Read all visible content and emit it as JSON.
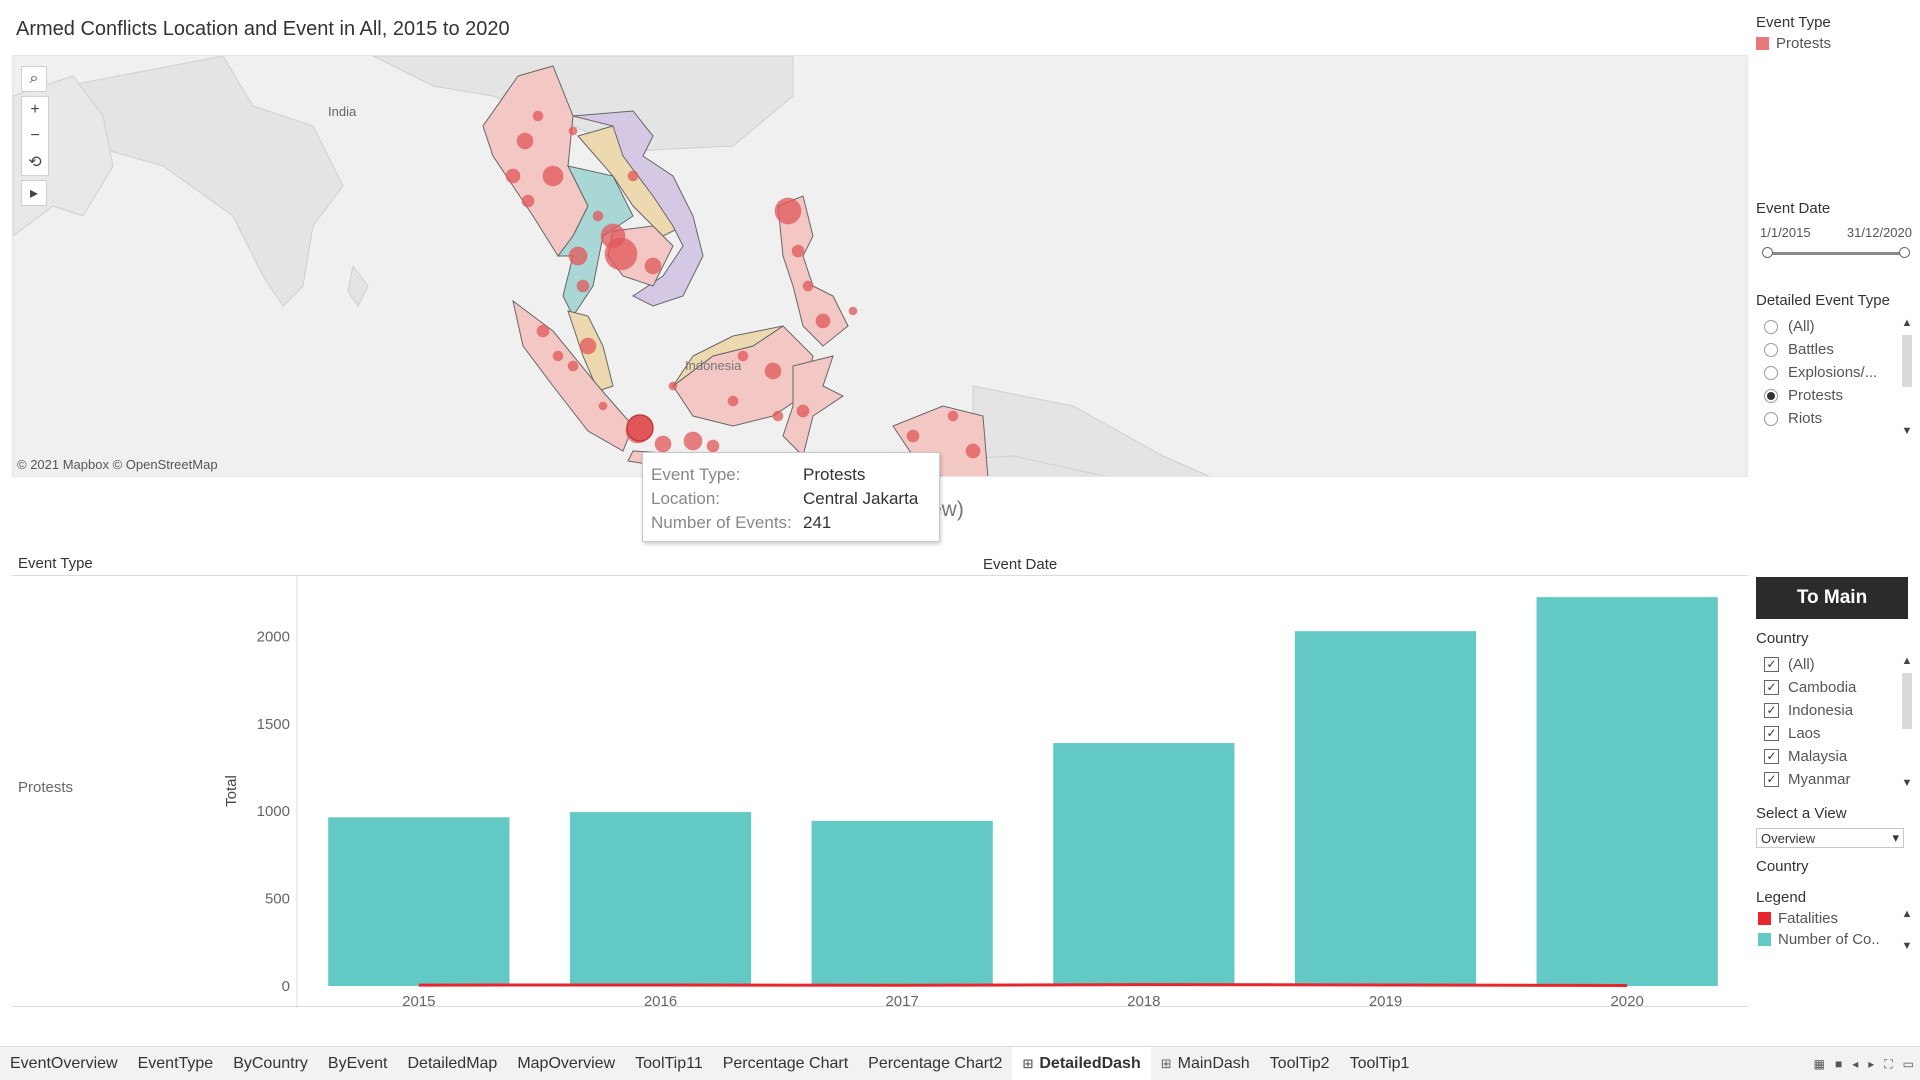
{
  "title": "Armed Conflicts Location and Event in All, 2015 to 2020",
  "map": {
    "attribution": "© 2021 Mapbox © OpenStreetMap",
    "labels": {
      "india": "India",
      "indonesia": "Indonesia"
    },
    "tools": {
      "search": "⌕",
      "zoom_in": "+",
      "zoom_out": "−",
      "reset": "⟲",
      "expand": "▸"
    },
    "colors": {
      "protest_marker": "#e15759",
      "country_fill": "#f3c8c4"
    }
  },
  "tooltip": {
    "rows": [
      {
        "key": "Event Type:",
        "value": "Protests"
      },
      {
        "key": "Location:",
        "value": "Central Jakarta"
      },
      {
        "key": "Number of Events:",
        "value": "241"
      }
    ],
    "obscured_text": "ew)"
  },
  "chart": {
    "row_header": "Event Type",
    "col_header": "Event Date",
    "row_label": "Protests"
  },
  "chart_data": {
    "type": "bar",
    "categories": [
      "2015",
      "2016",
      "2017",
      "2018",
      "2019",
      "2020"
    ],
    "series": [
      {
        "values": [
          965,
          995,
          945,
          1390,
          2030,
          2225
        ],
        "color": "#63c9c5"
      },
      {
        "values": [
          5,
          6,
          4,
          8,
          6,
          3
        ],
        "color": "#e8262e"
      }
    ],
    "ylabel": "Total",
    "yticks": [
      "0",
      "500",
      "1000",
      "1500",
      "2000"
    ],
    "ylim": [
      0,
      2300
    ],
    "grid": false
  },
  "right": {
    "event_type": {
      "title": "Event Type",
      "item": "Protests",
      "color": "#e8787a"
    },
    "event_date": {
      "title": "Event Date",
      "start": "1/1/2015",
      "end": "31/12/2020"
    },
    "detailed_event_type": {
      "title": "Detailed Event Type",
      "items": [
        "(All)",
        "Battles",
        "Explosions/...",
        "Protests",
        "Riots"
      ],
      "selected": "Protests"
    },
    "to_main": "To Main",
    "country": {
      "title": "Country",
      "items": [
        "(All)",
        "Cambodia",
        "Indonesia",
        "Laos",
        "Malaysia",
        "Myanmar"
      ]
    },
    "select_view": {
      "title": "Select a View",
      "value": "Overview"
    },
    "country2_title": "Country",
    "legend": {
      "title": "Legend",
      "items": [
        {
          "label": "Fatalities",
          "color": "#e8262e"
        },
        {
          "label": "Number of Co..",
          "color": "#63c9c5"
        }
      ]
    }
  },
  "tabs": [
    {
      "label": "EventOverview"
    },
    {
      "label": "EventType"
    },
    {
      "label": "ByCountry"
    },
    {
      "label": "ByEvent"
    },
    {
      "label": "DetailedMap"
    },
    {
      "label": "MapOverview"
    },
    {
      "label": "ToolTip11"
    },
    {
      "label": "Percentage Chart"
    },
    {
      "label": "Percentage Chart2"
    },
    {
      "label": "DetailedDash",
      "active": true,
      "icon": "grid-icon"
    },
    {
      "label": "MainDash",
      "icon": "grid-icon"
    },
    {
      "label": "ToolTip2"
    },
    {
      "label": "ToolTip1"
    }
  ]
}
